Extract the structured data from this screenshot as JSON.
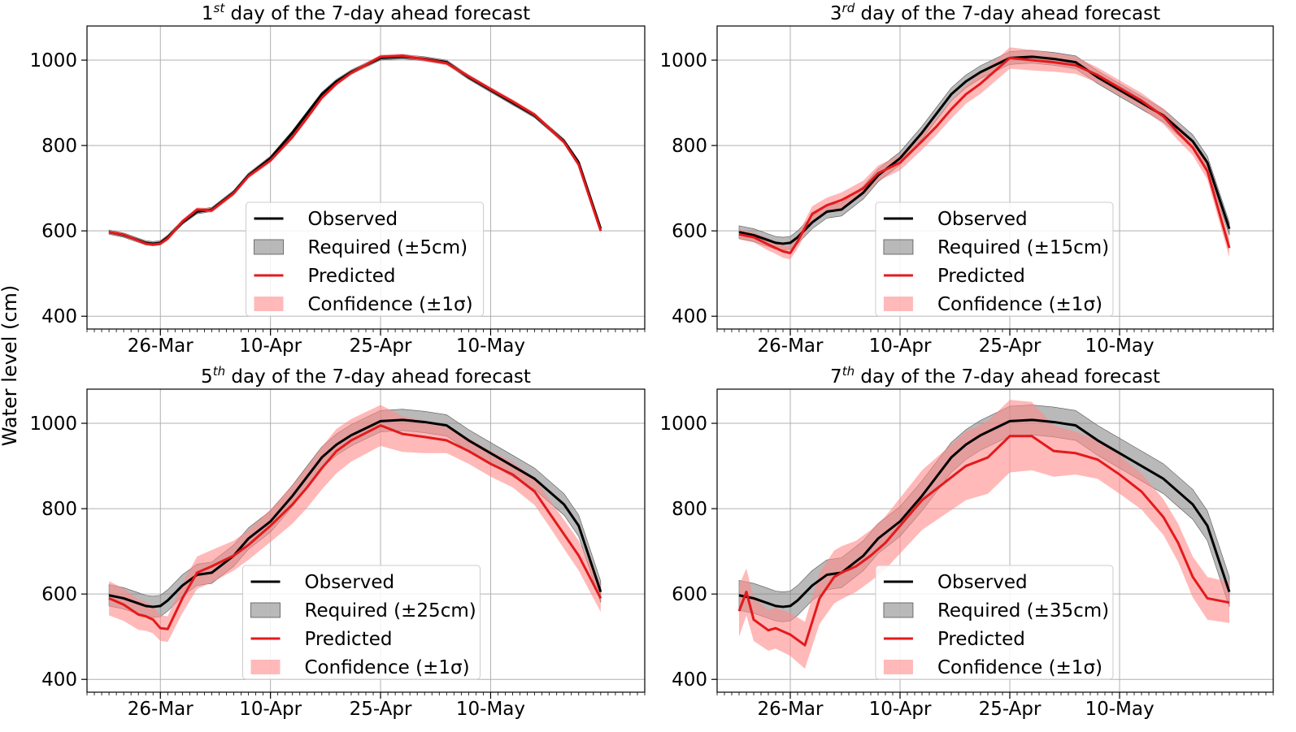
{
  "figure": {
    "ylabel": "Water level (cm)"
  },
  "colors": {
    "observed": "#000000",
    "required_fill": "#808080",
    "predicted": "#e31a1c",
    "confidence_fill": "#ff8a8a",
    "grid": "#b0b0b0"
  },
  "chart_data": [
    {
      "type": "line",
      "title_prefix": "1",
      "title_sup": "st",
      "title_rest": " day of the 7-day ahead forecast",
      "xlabel": "",
      "ylabel": "Water level (cm)",
      "ylim": [
        370,
        1080
      ],
      "yticks": [
        400,
        600,
        800,
        1000
      ],
      "xlim": [
        "2024-03-16",
        "2024-05-31"
      ],
      "xticks": [
        {
          "date": "2024-03-26",
          "label": "26-Mar"
        },
        {
          "date": "2024-04-10",
          "label": "10-Apr"
        },
        {
          "date": "2024-04-25",
          "label": "25-Apr"
        },
        {
          "date": "2024-05-10",
          "label": "10-May"
        }
      ],
      "grid": true,
      "legend_position": "lower-center",
      "legend": [
        "Observed",
        "Required (±5cm)",
        "Predicted",
        "Confidence (±1σ)"
      ],
      "required_band": 5,
      "series": [
        {
          "name": "Observed",
          "x": [
            "2024-03-19",
            "2024-03-21",
            "2024-03-23",
            "2024-03-24",
            "2024-03-25",
            "2024-03-26",
            "2024-03-27",
            "2024-03-29",
            "2024-03-31",
            "2024-04-02",
            "2024-04-05",
            "2024-04-07",
            "2024-04-10",
            "2024-04-13",
            "2024-04-15",
            "2024-04-17",
            "2024-04-19",
            "2024-04-21",
            "2024-04-25",
            "2024-04-28",
            "2024-05-01",
            "2024-05-04",
            "2024-05-07",
            "2024-05-10",
            "2024-05-13",
            "2024-05-16",
            "2024-05-18",
            "2024-05-20",
            "2024-05-22",
            "2024-05-25"
          ],
          "y": [
            597,
            590,
            578,
            572,
            570,
            572,
            585,
            620,
            645,
            650,
            690,
            730,
            770,
            830,
            875,
            920,
            950,
            972,
            1005,
            1008,
            1003,
            995,
            960,
            930,
            900,
            870,
            840,
            810,
            760,
            605
          ]
        },
        {
          "name": "Predicted",
          "x": [
            "2024-03-19",
            "2024-03-21",
            "2024-03-23",
            "2024-03-24",
            "2024-03-25",
            "2024-03-26",
            "2024-03-27",
            "2024-03-29",
            "2024-03-31",
            "2024-04-02",
            "2024-04-05",
            "2024-04-07",
            "2024-04-10",
            "2024-04-13",
            "2024-04-15",
            "2024-04-17",
            "2024-04-19",
            "2024-04-21",
            "2024-04-25",
            "2024-04-28",
            "2024-05-01",
            "2024-05-04",
            "2024-05-07",
            "2024-05-10",
            "2024-05-13",
            "2024-05-16",
            "2024-05-18",
            "2024-05-20",
            "2024-05-22",
            "2024-05-25"
          ],
          "y": [
            597,
            591,
            577,
            570,
            568,
            570,
            582,
            622,
            650,
            648,
            688,
            728,
            765,
            820,
            865,
            912,
            945,
            970,
            1008,
            1010,
            1002,
            993,
            962,
            932,
            903,
            872,
            840,
            808,
            755,
            600
          ],
          "sigma": [
            4,
            4,
            4,
            4,
            4,
            4,
            5,
            5,
            5,
            5,
            5,
            5,
            5,
            5,
            5,
            5,
            5,
            5,
            5,
            5,
            5,
            5,
            5,
            5,
            5,
            5,
            5,
            5,
            5,
            5
          ]
        }
      ]
    },
    {
      "type": "line",
      "title_prefix": "3",
      "title_sup": "rd",
      "title_rest": " day of the 7-day ahead forecast",
      "xlabel": "",
      "ylabel": "",
      "ylim": [
        370,
        1080
      ],
      "yticks": [
        400,
        600,
        800,
        1000
      ],
      "xlim": [
        "2024-03-16",
        "2024-05-31"
      ],
      "xticks": [
        {
          "date": "2024-03-26",
          "label": "26-Mar"
        },
        {
          "date": "2024-04-10",
          "label": "10-Apr"
        },
        {
          "date": "2024-04-25",
          "label": "25-Apr"
        },
        {
          "date": "2024-05-10",
          "label": "10-May"
        }
      ],
      "grid": true,
      "legend_position": "lower-center",
      "legend": [
        "Observed",
        "Required (±15cm)",
        "Predicted",
        "Confidence (±1σ)"
      ],
      "required_band": 15,
      "series": [
        {
          "name": "Observed",
          "x": [
            "2024-03-19",
            "2024-03-21",
            "2024-03-23",
            "2024-03-24",
            "2024-03-25",
            "2024-03-26",
            "2024-03-27",
            "2024-03-29",
            "2024-03-31",
            "2024-04-02",
            "2024-04-05",
            "2024-04-07",
            "2024-04-10",
            "2024-04-13",
            "2024-04-15",
            "2024-04-17",
            "2024-04-19",
            "2024-04-21",
            "2024-04-25",
            "2024-04-28",
            "2024-05-01",
            "2024-05-04",
            "2024-05-07",
            "2024-05-10",
            "2024-05-13",
            "2024-05-16",
            "2024-05-18",
            "2024-05-20",
            "2024-05-22",
            "2024-05-25"
          ],
          "y": [
            597,
            590,
            578,
            572,
            570,
            572,
            585,
            620,
            645,
            650,
            690,
            730,
            770,
            830,
            875,
            920,
            950,
            972,
            1005,
            1008,
            1003,
            995,
            960,
            930,
            900,
            870,
            840,
            810,
            760,
            605
          ]
        },
        {
          "name": "Predicted",
          "x": [
            "2024-03-19",
            "2024-03-21",
            "2024-03-23",
            "2024-03-24",
            "2024-03-25",
            "2024-03-26",
            "2024-03-27",
            "2024-03-29",
            "2024-03-31",
            "2024-04-02",
            "2024-04-05",
            "2024-04-07",
            "2024-04-10",
            "2024-04-13",
            "2024-04-15",
            "2024-04-17",
            "2024-04-19",
            "2024-04-21",
            "2024-04-25",
            "2024-04-28",
            "2024-05-01",
            "2024-05-04",
            "2024-05-07",
            "2024-05-10",
            "2024-05-13",
            "2024-05-16",
            "2024-05-18",
            "2024-05-20",
            "2024-05-22",
            "2024-05-25"
          ],
          "y": [
            592,
            585,
            568,
            560,
            552,
            548,
            575,
            640,
            660,
            672,
            700,
            735,
            760,
            810,
            845,
            885,
            920,
            945,
            1005,
            1000,
            995,
            988,
            965,
            935,
            905,
            868,
            830,
            795,
            740,
            560
          ],
          "sigma": [
            12,
            12,
            14,
            14,
            15,
            15,
            16,
            18,
            18,
            18,
            18,
            18,
            18,
            20,
            20,
            22,
            22,
            24,
            25,
            24,
            22,
            20,
            18,
            18,
            18,
            18,
            18,
            18,
            20,
            22
          ]
        }
      ]
    },
    {
      "type": "line",
      "title_prefix": "5",
      "title_sup": "th",
      "title_rest": " day of the 7-day ahead forecast",
      "xlabel": "",
      "ylabel": "",
      "ylim": [
        370,
        1080
      ],
      "yticks": [
        400,
        600,
        800,
        1000
      ],
      "xlim": [
        "2024-03-16",
        "2024-05-31"
      ],
      "xticks": [
        {
          "date": "2024-03-26",
          "label": "26-Mar"
        },
        {
          "date": "2024-04-10",
          "label": "10-Apr"
        },
        {
          "date": "2024-04-25",
          "label": "25-Apr"
        },
        {
          "date": "2024-05-10",
          "label": "10-May"
        }
      ],
      "grid": true,
      "legend_position": "lower-center",
      "legend": [
        "Observed",
        "Required (±25cm)",
        "Predicted",
        "Confidence (±1σ)"
      ],
      "required_band": 25,
      "series": [
        {
          "name": "Observed",
          "x": [
            "2024-03-19",
            "2024-03-21",
            "2024-03-23",
            "2024-03-24",
            "2024-03-25",
            "2024-03-26",
            "2024-03-27",
            "2024-03-29",
            "2024-03-31",
            "2024-04-02",
            "2024-04-05",
            "2024-04-07",
            "2024-04-10",
            "2024-04-13",
            "2024-04-15",
            "2024-04-17",
            "2024-04-19",
            "2024-04-21",
            "2024-04-25",
            "2024-04-28",
            "2024-05-01",
            "2024-05-04",
            "2024-05-07",
            "2024-05-10",
            "2024-05-13",
            "2024-05-16",
            "2024-05-18",
            "2024-05-20",
            "2024-05-22",
            "2024-05-25"
          ],
          "y": [
            597,
            590,
            578,
            572,
            570,
            572,
            585,
            620,
            645,
            650,
            690,
            730,
            770,
            830,
            875,
            920,
            950,
            972,
            1005,
            1008,
            1003,
            995,
            960,
            930,
            900,
            870,
            840,
            810,
            760,
            605
          ]
        },
        {
          "name": "Predicted",
          "x": [
            "2024-03-19",
            "2024-03-21",
            "2024-03-23",
            "2024-03-24",
            "2024-03-25",
            "2024-03-26",
            "2024-03-27",
            "2024-03-29",
            "2024-03-31",
            "2024-04-02",
            "2024-04-05",
            "2024-04-07",
            "2024-04-10",
            "2024-04-13",
            "2024-04-15",
            "2024-04-17",
            "2024-04-19",
            "2024-04-21",
            "2024-04-25",
            "2024-04-28",
            "2024-05-01",
            "2024-05-04",
            "2024-05-07",
            "2024-05-10",
            "2024-05-13",
            "2024-05-16",
            "2024-05-18",
            "2024-05-20",
            "2024-05-22",
            "2024-05-25"
          ],
          "y": [
            590,
            575,
            552,
            548,
            540,
            520,
            518,
            590,
            650,
            665,
            690,
            715,
            760,
            810,
            850,
            895,
            935,
            960,
            995,
            975,
            968,
            960,
            935,
            905,
            880,
            840,
            790,
            740,
            690,
            590
          ],
          "sigma": [
            40,
            38,
            36,
            34,
            32,
            30,
            30,
            35,
            38,
            38,
            35,
            35,
            38,
            45,
            48,
            50,
            52,
            50,
            48,
            42,
            38,
            30,
            30,
            30,
            30,
            32,
            32,
            34,
            35,
            32
          ]
        }
      ]
    },
    {
      "type": "line",
      "title_prefix": "7",
      "title_sup": "th",
      "title_rest": " day of the 7-day ahead forecast",
      "xlabel": "",
      "ylabel": "",
      "ylim": [
        370,
        1080
      ],
      "yticks": [
        400,
        600,
        800,
        1000
      ],
      "xlim": [
        "2024-03-16",
        "2024-05-31"
      ],
      "xticks": [
        {
          "date": "2024-03-26",
          "label": "26-Mar"
        },
        {
          "date": "2024-04-10",
          "label": "10-Apr"
        },
        {
          "date": "2024-04-25",
          "label": "25-Apr"
        },
        {
          "date": "2024-05-10",
          "label": "10-May"
        }
      ],
      "grid": true,
      "legend_position": "lower-center",
      "legend": [
        "Observed",
        "Required (±35cm)",
        "Predicted",
        "Confidence (±1σ)"
      ],
      "required_band": 35,
      "series": [
        {
          "name": "Observed",
          "x": [
            "2024-03-19",
            "2024-03-21",
            "2024-03-23",
            "2024-03-24",
            "2024-03-25",
            "2024-03-26",
            "2024-03-27",
            "2024-03-29",
            "2024-03-31",
            "2024-04-02",
            "2024-04-05",
            "2024-04-07",
            "2024-04-10",
            "2024-04-13",
            "2024-04-15",
            "2024-04-17",
            "2024-04-19",
            "2024-04-21",
            "2024-04-25",
            "2024-04-28",
            "2024-05-01",
            "2024-05-04",
            "2024-05-07",
            "2024-05-10",
            "2024-05-13",
            "2024-05-16",
            "2024-05-18",
            "2024-05-20",
            "2024-05-22",
            "2024-05-25"
          ],
          "y": [
            597,
            590,
            578,
            572,
            570,
            572,
            585,
            620,
            645,
            650,
            690,
            730,
            770,
            830,
            875,
            920,
            950,
            972,
            1005,
            1008,
            1003,
            995,
            960,
            930,
            900,
            870,
            840,
            810,
            760,
            605
          ]
        },
        {
          "name": "Predicted",
          "x": [
            "2024-03-19",
            "2024-03-20",
            "2024-03-21",
            "2024-03-23",
            "2024-03-24",
            "2024-03-26",
            "2024-03-28",
            "2024-03-30",
            "2024-04-01",
            "2024-04-02",
            "2024-04-04",
            "2024-04-06",
            "2024-04-08",
            "2024-04-10",
            "2024-04-13",
            "2024-04-16",
            "2024-04-19",
            "2024-04-22",
            "2024-04-25",
            "2024-04-28",
            "2024-05-01",
            "2024-05-04",
            "2024-05-07",
            "2024-05-10",
            "2024-05-13",
            "2024-05-16",
            "2024-05-18",
            "2024-05-20",
            "2024-05-22",
            "2024-05-25"
          ],
          "y": [
            560,
            605,
            540,
            515,
            520,
            505,
            480,
            590,
            640,
            650,
            665,
            690,
            720,
            760,
            820,
            860,
            900,
            920,
            970,
            970,
            935,
            930,
            915,
            880,
            840,
            780,
            720,
            640,
            590,
            580
          ],
          "sigma": [
            60,
            55,
            50,
            48,
            48,
            50,
            55,
            60,
            62,
            62,
            60,
            60,
            62,
            65,
            70,
            75,
            80,
            85,
            85,
            80,
            60,
            50,
            45,
            45,
            42,
            42,
            45,
            48,
            50,
            48
          ]
        }
      ]
    }
  ]
}
